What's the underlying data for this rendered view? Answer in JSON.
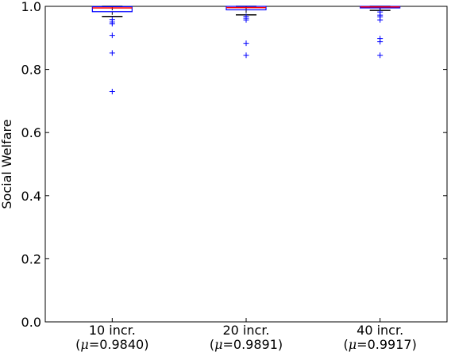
{
  "chart_data": {
    "type": "box",
    "title": "",
    "xlabel": "",
    "ylabel": "Social Welfare",
    "ylim": [
      0.0,
      1.0
    ],
    "yticks": [
      "0.0",
      "0.2",
      "0.4",
      "0.6",
      "0.8",
      "1.0"
    ],
    "grid": false,
    "categories": [
      {
        "line1": "10 incr.",
        "mu_value": "0.9840"
      },
      {
        "line1": "20 incr.",
        "mu_value": "0.9891"
      },
      {
        "line1": "40 incr.",
        "mu_value": "0.9917"
      }
    ],
    "boxes": [
      {
        "whisker_low": 0.968,
        "q1": 0.983,
        "median": 0.995,
        "q3": 0.999,
        "whisker_high": 1.0,
        "outliers": [
          0.958,
          0.95,
          0.945,
          0.908,
          0.852,
          0.73
        ]
      },
      {
        "whisker_low": 0.973,
        "q1": 0.989,
        "median": 0.996,
        "q3": 1.0,
        "whisker_high": 1.0,
        "outliers": [
          0.968,
          0.962,
          0.957,
          0.883,
          0.845
        ]
      },
      {
        "whisker_low": 0.987,
        "q1": 0.995,
        "median": 0.998,
        "q3": 1.0,
        "whisker_high": 1.0,
        "outliers": [
          0.982,
          0.972,
          0.967,
          0.957,
          0.898,
          0.888,
          0.845
        ]
      }
    ],
    "colors": {
      "box": "#0000ff",
      "median": "#ff0000",
      "whisker": "#000000",
      "outlier": "#0000ff",
      "axes": "#000000"
    }
  }
}
